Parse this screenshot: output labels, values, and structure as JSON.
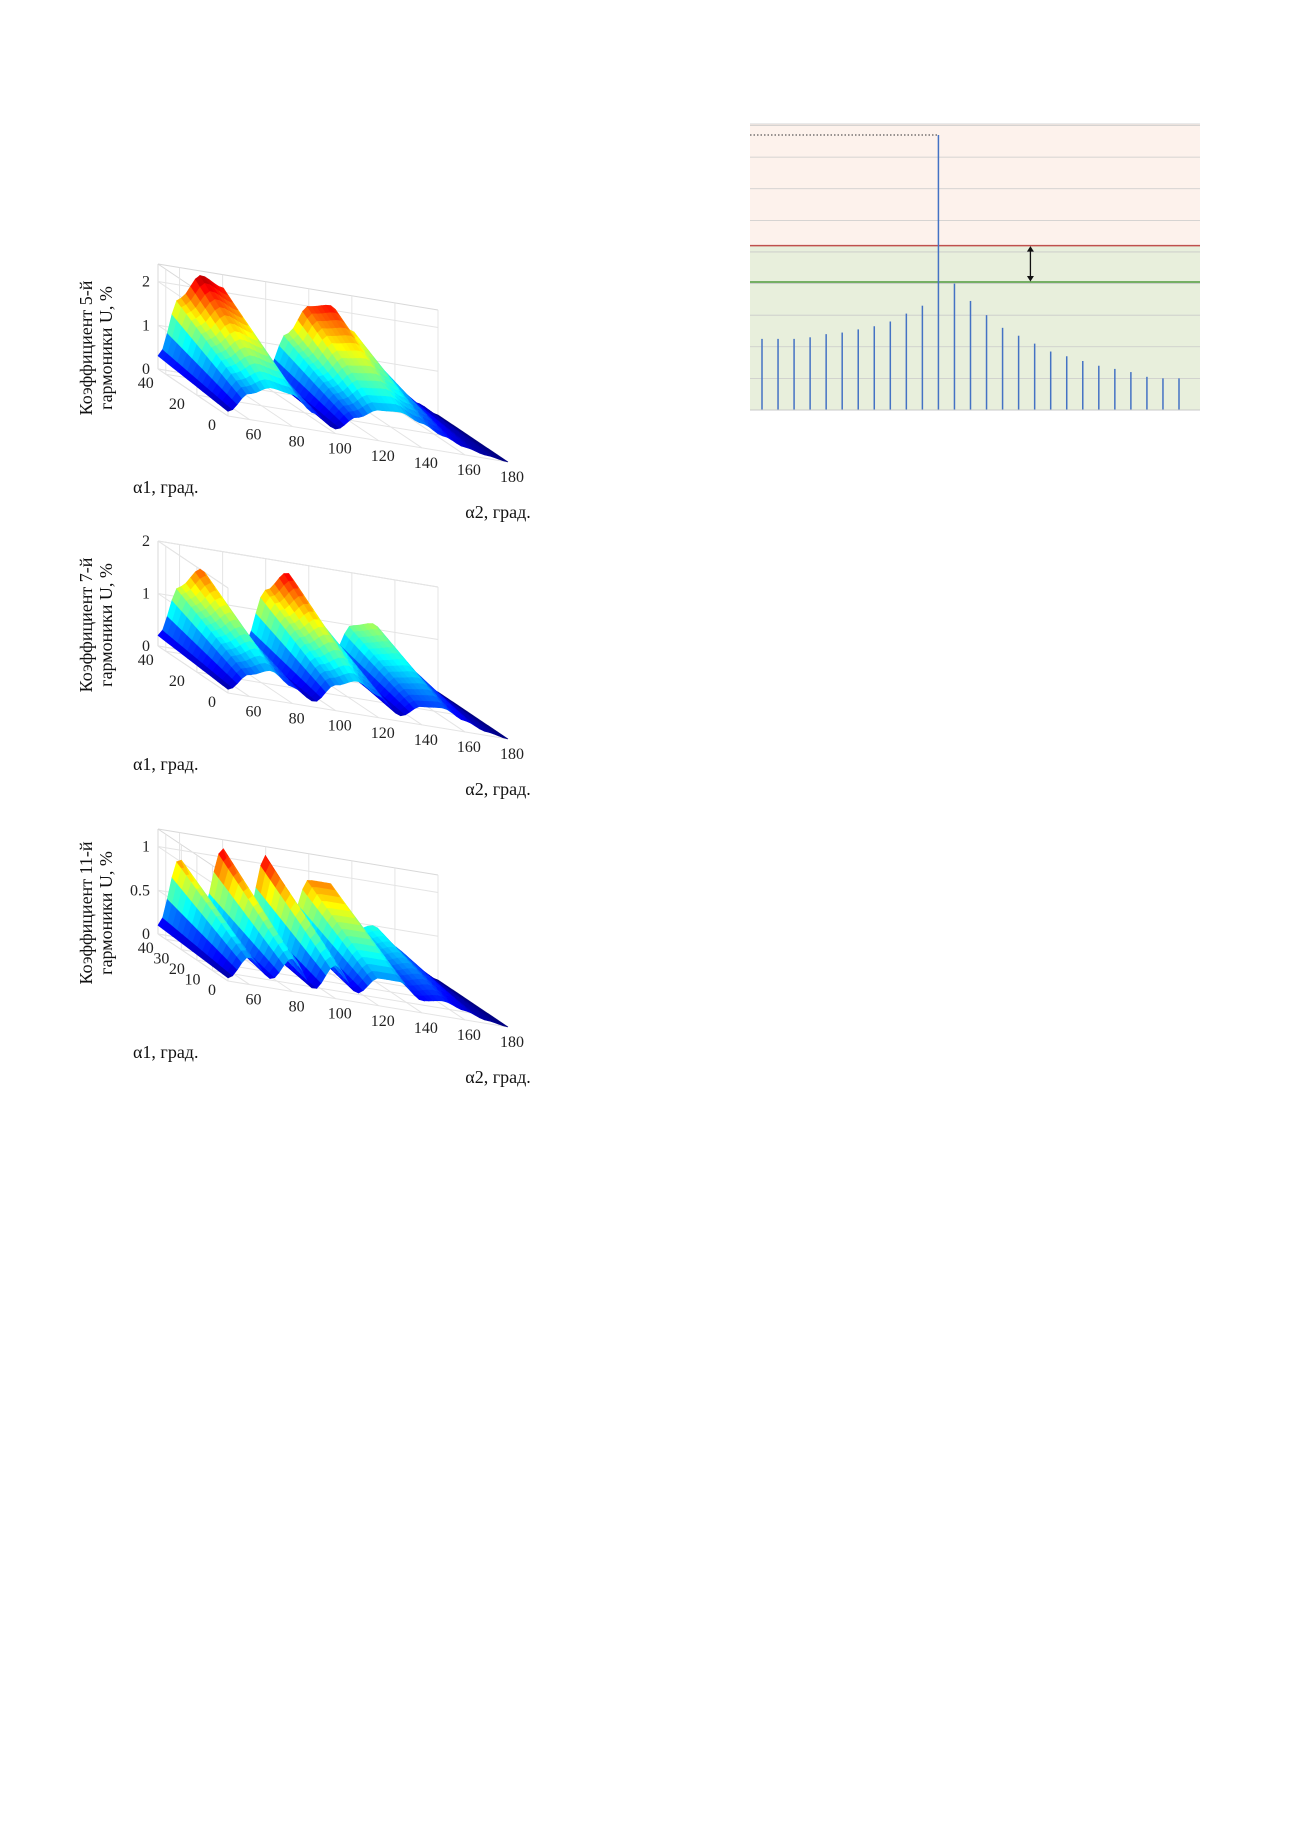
{
  "surfaces": [
    {
      "zlabel_line1": "Коэффициент 5-й",
      "zlabel_line2": "гармоники U, %",
      "xlabel": "α2, град.",
      "ylabel": "α1, град.",
      "x_ticks": [
        "60",
        "80",
        "100",
        "120",
        "140",
        "160",
        "180"
      ],
      "y_ticks": [
        "0",
        "20",
        "40"
      ],
      "z_ticks": [
        "0",
        "1",
        "2"
      ]
    },
    {
      "zlabel_line1": "Коэффициент 7-й",
      "zlabel_line2": "гармоники U, %",
      "xlabel": "α2, град.",
      "ylabel": "α1, град.",
      "x_ticks": [
        "60",
        "80",
        "100",
        "120",
        "140",
        "160",
        "180"
      ],
      "y_ticks": [
        "0",
        "20",
        "40"
      ],
      "z_ticks": [
        "0",
        "1",
        "2"
      ]
    },
    {
      "zlabel_line1": "Коэффициент 11-й",
      "zlabel_line2": "гармоники U, %",
      "xlabel": "α2, град.",
      "ylabel": "α1, град.",
      "x_ticks": [
        "60",
        "80",
        "100",
        "120",
        "140",
        "160",
        "180"
      ],
      "y_ticks": [
        "0",
        "10",
        "20",
        "30",
        "40"
      ],
      "z_ticks": [
        "0",
        "0.5",
        "1"
      ]
    }
  ],
  "colors": {
    "surface_high": "#a50f15",
    "surface_low": "#08306b",
    "spectrum_stem": "#4472c4",
    "zone_upper": "#fdf2ec",
    "zone_lower": "#e8efdc",
    "limit_red": "#c0504d",
    "limit_green": "#4f9a3c"
  },
  "chart_data": [
    {
      "type": "surface",
      "title": "",
      "xlabel": "α2, град.",
      "ylabel": "α1, град.",
      "zlabel": "Коэффициент 5-й гармоники U, %",
      "xlim": [
        50,
        180
      ],
      "ylim": [
        0,
        45
      ],
      "zlim": [
        0,
        2.4
      ],
      "colormap": "jet",
      "profile_x": [
        50,
        60,
        70,
        80,
        90,
        100,
        110,
        120,
        130,
        140,
        150,
        160,
        170,
        180
      ],
      "profile_z_back_edge": [
        0.3,
        1.7,
        2.3,
        2.1,
        1.1,
        0.3,
        1.3,
        2.0,
        2.1,
        1.6,
        1.0,
        0.5,
        0.2,
        0.0
      ]
    },
    {
      "type": "surface",
      "title": "",
      "xlabel": "α2, град.",
      "ylabel": "α1, град.",
      "zlabel": "Коэффициент 7-й гармоники U, %",
      "xlim": [
        50,
        180
      ],
      "ylim": [
        0,
        45
      ],
      "zlim": [
        0,
        2.0
      ],
      "colormap": "jet",
      "profile_x": [
        50,
        60,
        70,
        80,
        90,
        100,
        110,
        120,
        130,
        140,
        150,
        160,
        170,
        180
      ],
      "profile_z_back_edge": [
        0.2,
        1.2,
        1.6,
        0.9,
        0.3,
        1.4,
        1.8,
        1.2,
        0.3,
        1.0,
        1.1,
        0.6,
        0.2,
        0.0
      ]
    },
    {
      "type": "surface",
      "title": "",
      "xlabel": "α2, град.",
      "ylabel": "α1, град.",
      "zlabel": "Коэффициент 11-й гармоники U, %",
      "xlim": [
        50,
        180
      ],
      "ylim": [
        0,
        45
      ],
      "zlim": [
        0,
        1.2
      ],
      "colormap": "jet",
      "profile_x": [
        50,
        60,
        70,
        80,
        90,
        100,
        110,
        120,
        130,
        140,
        150,
        160,
        170,
        180
      ],
      "profile_z_back_edge": [
        0.1,
        0.9,
        0.3,
        1.1,
        0.2,
        1.1,
        0.3,
        0.9,
        0.9,
        0.4,
        0.5,
        0.3,
        0.1,
        0.0
      ]
    },
    {
      "type": "bar",
      "title": "",
      "xlabel": "",
      "ylabel": "",
      "ylim": [
        0,
        8.7
      ],
      "grid": true,
      "values": [
        2.25,
        2.25,
        2.25,
        2.3,
        2.4,
        2.45,
        2.55,
        2.65,
        2.8,
        3.05,
        3.3,
        8.7,
        4.0,
        3.45,
        3.0,
        2.6,
        2.35,
        2.1,
        1.85,
        1.7,
        1.55,
        1.4,
        1.3,
        1.2,
        1.05,
        1.0,
        1.0
      ],
      "upper_limit": 5.2,
      "lower_limit": 4.05
    }
  ]
}
